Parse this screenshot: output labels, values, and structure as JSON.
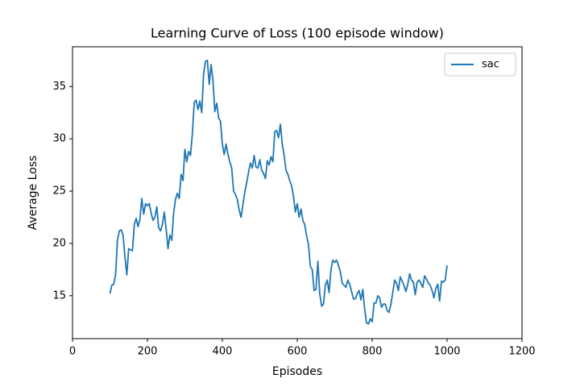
{
  "chart_data": {
    "type": "line",
    "title": "Learning Curve of Loss (100 episode window)",
    "x_label": "Episodes",
    "y_label": "Average Loss",
    "xlim": [
      0,
      1200
    ],
    "xticks": [
      0,
      200,
      400,
      600,
      800,
      1000,
      1200
    ],
    "ylim": [
      10.9,
      38.8
    ],
    "yticks": [
      15,
      20,
      25,
      30,
      35
    ],
    "legend": "upper right",
    "x": [
      100,
      105,
      110,
      115,
      120,
      125,
      130,
      135,
      140,
      145,
      150,
      155,
      160,
      165,
      170,
      175,
      180,
      185,
      190,
      195,
      200,
      205,
      210,
      215,
      220,
      225,
      230,
      235,
      240,
      245,
      250,
      255,
      260,
      265,
      270,
      275,
      280,
      285,
      290,
      295,
      300,
      305,
      310,
      315,
      320,
      325,
      330,
      335,
      340,
      345,
      350,
      355,
      360,
      365,
      370,
      375,
      380,
      385,
      390,
      395,
      400,
      405,
      410,
      415,
      420,
      425,
      430,
      435,
      440,
      445,
      450,
      455,
      460,
      465,
      470,
      475,
      480,
      485,
      490,
      495,
      500,
      505,
      510,
      515,
      520,
      525,
      530,
      535,
      540,
      545,
      550,
      555,
      560,
      565,
      570,
      575,
      580,
      585,
      590,
      595,
      600,
      605,
      610,
      615,
      620,
      625,
      630,
      635,
      640,
      645,
      650,
      655,
      660,
      665,
      670,
      675,
      680,
      685,
      690,
      695,
      700,
      705,
      710,
      715,
      720,
      725,
      730,
      735,
      740,
      745,
      750,
      755,
      760,
      765,
      770,
      775,
      780,
      785,
      790,
      795,
      800,
      805,
      810,
      815,
      820,
      825,
      830,
      835,
      840,
      845,
      850,
      855,
      860,
      865,
      870,
      875,
      880,
      885,
      890,
      895,
      900,
      905,
      910,
      915,
      920,
      925,
      930,
      935,
      940,
      945,
      950,
      955,
      960,
      965,
      970,
      975,
      980,
      985,
      990,
      995,
      1000
    ],
    "series": [
      {
        "name": "sac",
        "color": "#1f77b4",
        "values": [
          15.2,
          16.0,
          16.1,
          17.0,
          20.3,
          21.2,
          21.3,
          20.8,
          18.7,
          17.0,
          19.5,
          19.4,
          19.3,
          21.8,
          22.4,
          21.6,
          22.3,
          24.3,
          22.8,
          23.8,
          23.6,
          23.8,
          22.9,
          22.2,
          22.5,
          23.5,
          21.5,
          21.2,
          21.8,
          23.0,
          21.4,
          19.5,
          20.8,
          20.3,
          22.9,
          24.2,
          24.8,
          24.3,
          26.6,
          26.0,
          29.0,
          27.8,
          28.8,
          28.4,
          30.5,
          33.5,
          33.7,
          32.8,
          33.6,
          32.5,
          36.2,
          37.4,
          37.5,
          35.2,
          37.1,
          35.6,
          32.6,
          33.4,
          32.0,
          31.7,
          29.5,
          28.5,
          29.5,
          28.5,
          27.8,
          27.2,
          25.0,
          24.7,
          24.2,
          23.2,
          22.5,
          23.7,
          24.9,
          25.8,
          26.8,
          27.7,
          27.2,
          28.4,
          27.3,
          27.2,
          28.0,
          27.0,
          26.7,
          26.2,
          27.9,
          27.5,
          28.3,
          27.8,
          30.7,
          30.8,
          30.1,
          31.4,
          29.5,
          28.4,
          27.0,
          26.6,
          26.0,
          25.5,
          24.5,
          23.0,
          23.8,
          22.5,
          23.3,
          22.2,
          21.8,
          20.7,
          19.9,
          17.8,
          17.5,
          15.5,
          15.6,
          18.3,
          15.2,
          14.0,
          14.2,
          16.0,
          16.5,
          15.3,
          17.5,
          18.4,
          18.2,
          18.4,
          17.9,
          17.3,
          16.2,
          16.0,
          15.8,
          16.5,
          16.1,
          15.4,
          14.7,
          14.7,
          15.2,
          15.5,
          14.6,
          15.6,
          13.7,
          12.4,
          12.3,
          12.8,
          12.5,
          14.3,
          14.3,
          15.0,
          14.8,
          13.9,
          14.2,
          14.2,
          13.6,
          13.4,
          14.2,
          15.3,
          16.5,
          16.2,
          15.5,
          16.8,
          16.4,
          16.0,
          15.4,
          16.1,
          17.1,
          16.5,
          16.3,
          15.1,
          16.3,
          16.5,
          16.2,
          15.8,
          16.9,
          16.6,
          16.2,
          16.0,
          15.5,
          14.8,
          15.7,
          16.1,
          14.5,
          16.4,
          16.3,
          16.5,
          17.9
        ]
      }
    ]
  }
}
